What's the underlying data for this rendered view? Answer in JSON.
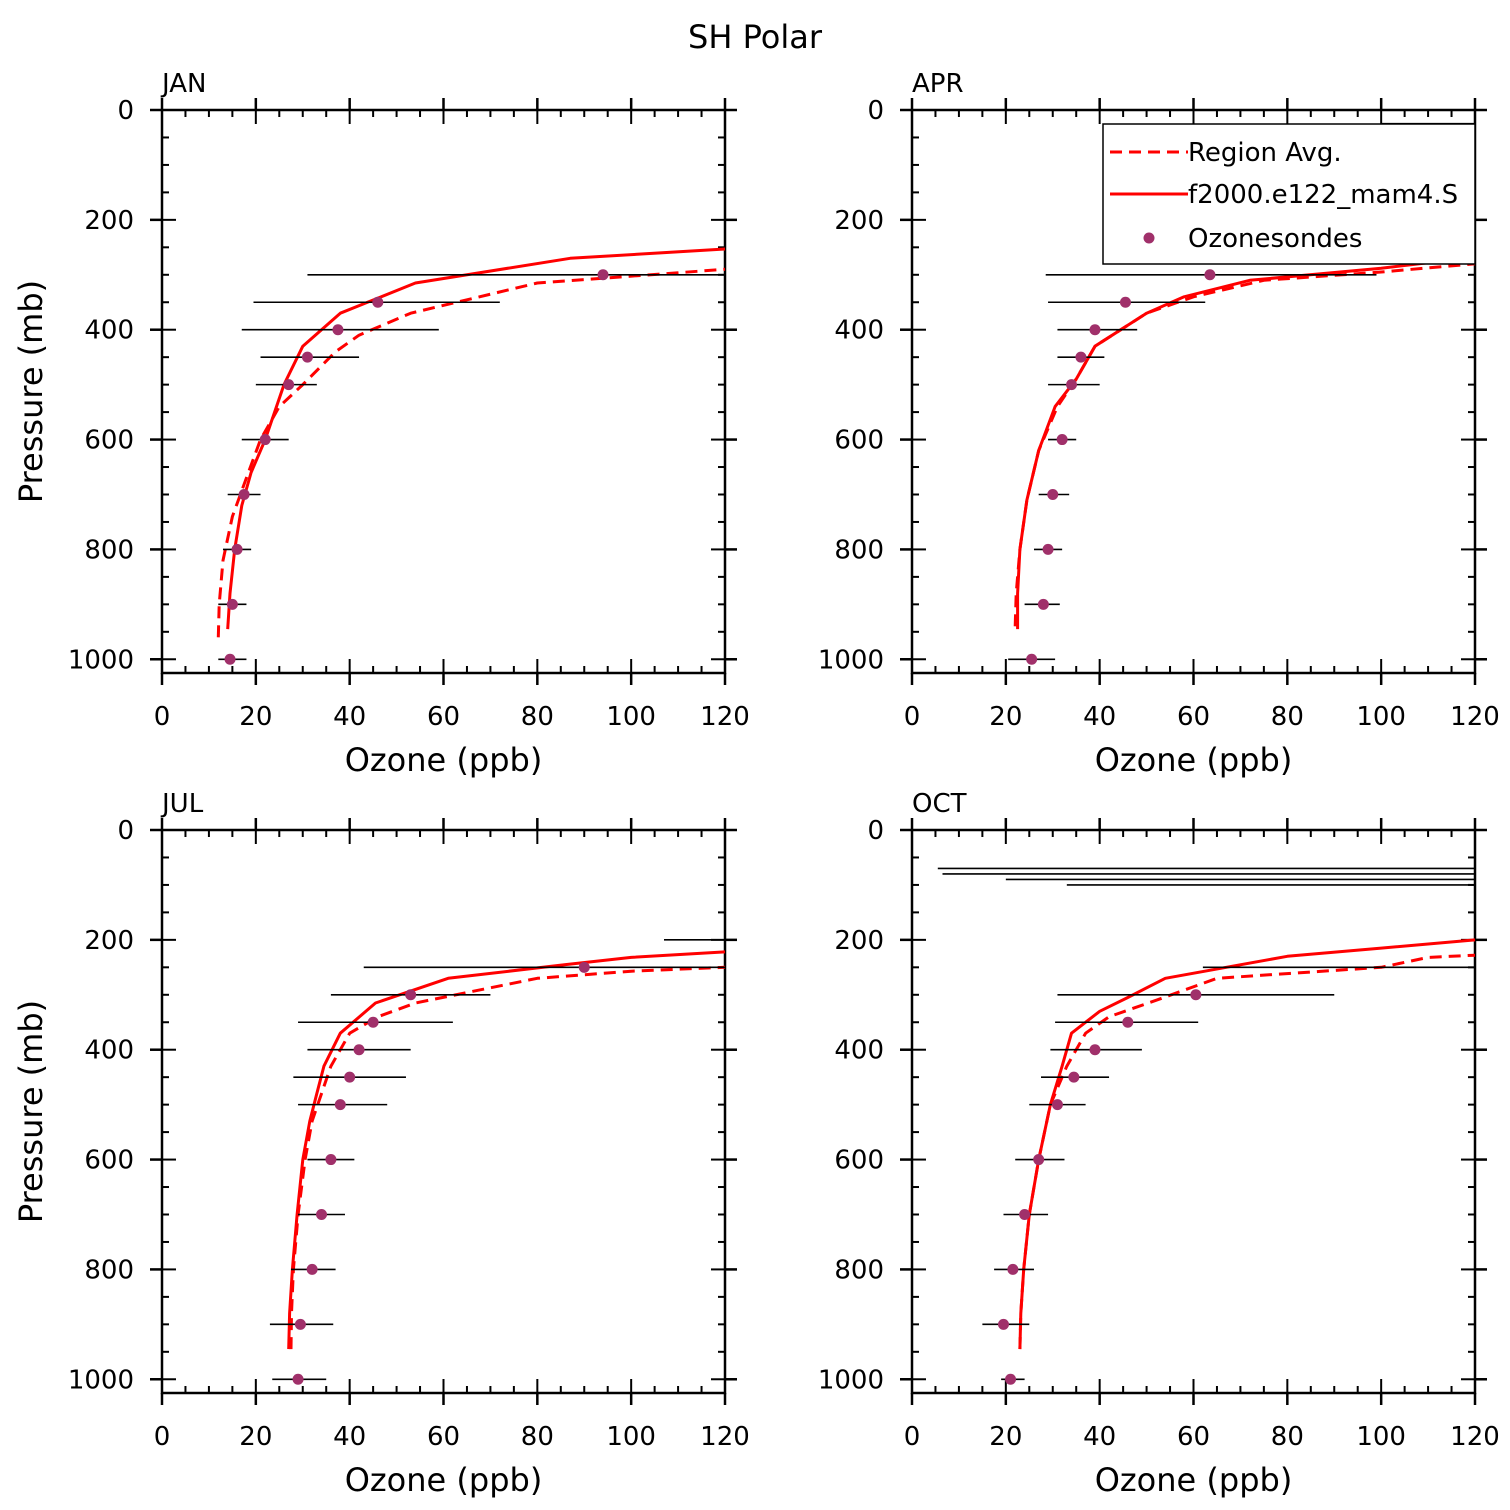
{
  "figure": {
    "title": "SH Polar",
    "xlabel": "Ozone (ppb)",
    "ylabel": "Pressure (mb)"
  },
  "legend": {
    "placement": "top-right of APR panel (clipped)",
    "entries": [
      {
        "label": "Region Avg.",
        "style": "dashed",
        "color": "#ff0000"
      },
      {
        "label": "f2000.e122_mam4.S",
        "style": "solid",
        "color": "#ff0000"
      },
      {
        "label": "Ozonesondes",
        "style": "marker",
        "color": "#a0306a"
      }
    ]
  },
  "colors": {
    "model": "#ff0000",
    "obs": "#a0306a",
    "errorbar": "#000000"
  },
  "chart_data": [
    {
      "type": "line",
      "panel": "JAN",
      "xlabel": "Ozone (ppb)",
      "ylabel": "Pressure (mb)",
      "xlim": [
        0,
        120
      ],
      "ylim": [
        1025,
        0
      ],
      "y_reversed": true,
      "xticks": [
        "0",
        "20",
        "40",
        "60",
        "80",
        "100",
        "120"
      ],
      "yticks": [
        "0",
        "200",
        "400",
        "600",
        "800",
        "1000"
      ],
      "series": [
        {
          "name": "Region Avg.",
          "style": "dashed",
          "x": [
            12,
            12.2,
            13,
            15,
            18,
            21,
            25,
            30,
            37,
            42,
            53,
            80,
            120
          ],
          "y": [
            960,
            900,
            820,
            740,
            670,
            600,
            540,
            500,
            440,
            410,
            370,
            315,
            290
          ]
        },
        {
          "name": "f2000.e122_mam4.S",
          "style": "solid",
          "x": [
            14,
            14.5,
            15.5,
            17,
            19,
            22,
            26,
            30,
            38,
            54,
            87,
            120
          ],
          "y": [
            945,
            880,
            800,
            720,
            660,
            600,
            500,
            430,
            370,
            315,
            270,
            253
          ]
        },
        {
          "name": "Ozonesondes",
          "style": "markers",
          "points": [
            {
              "x": 14.5,
              "y": 1000,
              "xerr": [
                12,
                18
              ]
            },
            {
              "x": 15,
              "y": 900,
              "xerr": [
                12,
                18
              ]
            },
            {
              "x": 16,
              "y": 800,
              "xerr": [
                13,
                19
              ]
            },
            {
              "x": 17.5,
              "y": 700,
              "xerr": [
                14,
                21
              ]
            },
            {
              "x": 22,
              "y": 600,
              "xerr": [
                17,
                27
              ]
            },
            {
              "x": 27,
              "y": 500,
              "xerr": [
                20,
                33
              ]
            },
            {
              "x": 31,
              "y": 450,
              "xerr": [
                21,
                42
              ]
            },
            {
              "x": 37.5,
              "y": 400,
              "xerr": [
                17,
                59
              ]
            },
            {
              "x": 46,
              "y": 350,
              "xerr": [
                19.5,
                72
              ]
            },
            {
              "x": 94,
              "y": 300,
              "xerr": [
                31,
                120
              ]
            }
          ]
        }
      ]
    },
    {
      "type": "line",
      "panel": "APR",
      "xlabel": "Ozone (ppb)",
      "ylabel": "",
      "xlim": [
        0,
        120
      ],
      "ylim": [
        1025,
        0
      ],
      "y_reversed": true,
      "xticks": [
        "0",
        "20",
        "40",
        "60",
        "80",
        "100",
        "120"
      ],
      "yticks": [
        "0",
        "200",
        "400",
        "600",
        "800",
        "1000"
      ],
      "series": [
        {
          "name": "Region Avg.",
          "style": "dashed",
          "x": [
            22,
            22.2,
            23,
            24.5,
            27,
            31,
            35,
            39,
            50,
            60,
            75,
            100,
            120
          ],
          "y": [
            940,
            880,
            800,
            710,
            620,
            540,
            490,
            430,
            370,
            340,
            310,
            295,
            280
          ]
        },
        {
          "name": "f2000.e122_mam4.S",
          "style": "solid",
          "x": [
            22.5,
            22.5,
            23,
            24.5,
            27,
            30.5,
            35,
            39,
            50,
            58,
            72,
            100,
            120
          ],
          "y": [
            945,
            880,
            800,
            710,
            620,
            540,
            490,
            430,
            370,
            340,
            310,
            288,
            268
          ]
        },
        {
          "name": "Ozonesondes",
          "style": "markers",
          "points": [
            {
              "x": 25.5,
              "y": 1000,
              "xerr": [
                20.5,
                30.5
              ]
            },
            {
              "x": 28,
              "y": 900,
              "xerr": [
                24,
                31.5
              ]
            },
            {
              "x": 29,
              "y": 800,
              "xerr": [
                26,
                32
              ]
            },
            {
              "x": 30,
              "y": 700,
              "xerr": [
                27,
                33.5
              ]
            },
            {
              "x": 32,
              "y": 600,
              "xerr": [
                29,
                35
              ]
            },
            {
              "x": 34,
              "y": 500,
              "xerr": [
                29,
                40
              ]
            },
            {
              "x": 36,
              "y": 450,
              "xerr": [
                31,
                41
              ]
            },
            {
              "x": 39,
              "y": 400,
              "xerr": [
                31,
                48
              ]
            },
            {
              "x": 45.5,
              "y": 350,
              "xerr": [
                29,
                62.5
              ]
            },
            {
              "x": 63.5,
              "y": 300,
              "xerr": [
                28.5,
                99
              ]
            },
            {
              "x": 120,
              "y": 250,
              "xerr": [
                51,
                120
              ]
            },
            {
              "x": 120,
              "y": 25,
              "xerr": [
                100,
                120
              ]
            }
          ]
        }
      ]
    },
    {
      "type": "line",
      "panel": "JUL",
      "xlabel": "Ozone (ppb)",
      "ylabel": "Pressure (mb)",
      "xlim": [
        0,
        120
      ],
      "ylim": [
        1025,
        0
      ],
      "y_reversed": true,
      "xticks": [
        "0",
        "20",
        "40",
        "60",
        "80",
        "100",
        "120"
      ],
      "yticks": [
        "0",
        "200",
        "400",
        "600",
        "800",
        "1000"
      ],
      "series": [
        {
          "name": "Region Avg.",
          "style": "dashed",
          "x": [
            27.5,
            27.6,
            28,
            29,
            30.5,
            32,
            34,
            36,
            40,
            46,
            54,
            80,
            100,
            120
          ],
          "y": [
            945,
            880,
            800,
            700,
            600,
            530,
            480,
            430,
            370,
            340,
            315,
            270,
            257,
            250
          ]
        },
        {
          "name": "f2000.e122_mam4.S",
          "style": "solid",
          "x": [
            27,
            27.2,
            27.8,
            28.8,
            30,
            31.5,
            33,
            34.5,
            38,
            45.5,
            61,
            86,
            100,
            120
          ],
          "y": [
            945,
            880,
            800,
            700,
            600,
            530,
            480,
            430,
            370,
            315,
            270,
            245,
            232,
            222
          ]
        },
        {
          "name": "Ozonesondes",
          "style": "markers",
          "points": [
            {
              "x": 29,
              "y": 1000,
              "xerr": [
                23.5,
                35
              ]
            },
            {
              "x": 29.5,
              "y": 900,
              "xerr": [
                23,
                36.5
              ]
            },
            {
              "x": 32,
              "y": 800,
              "xerr": [
                27.5,
                37
              ]
            },
            {
              "x": 34,
              "y": 700,
              "xerr": [
                29,
                39
              ]
            },
            {
              "x": 36,
              "y": 600,
              "xerr": [
                31,
                41
              ]
            },
            {
              "x": 38,
              "y": 500,
              "xerr": [
                29,
                48
              ]
            },
            {
              "x": 40,
              "y": 450,
              "xerr": [
                28,
                52
              ]
            },
            {
              "x": 42,
              "y": 400,
              "xerr": [
                31,
                53
              ]
            },
            {
              "x": 45,
              "y": 350,
              "xerr": [
                29,
                62
              ]
            },
            {
              "x": 53,
              "y": 300,
              "xerr": [
                36,
                70
              ]
            },
            {
              "x": 90,
              "y": 250,
              "xerr": [
                43,
                120
              ]
            },
            {
              "x": 120,
              "y": 200,
              "xerr": [
                107,
                120
              ]
            }
          ]
        }
      ]
    },
    {
      "type": "line",
      "panel": "OCT",
      "xlabel": "Ozone (ppb)",
      "ylabel": "",
      "xlim": [
        0,
        120
      ],
      "ylim": [
        1025,
        0
      ],
      "y_reversed": true,
      "xticks": [
        "0",
        "20",
        "40",
        "60",
        "80",
        "100",
        "120"
      ],
      "yticks": [
        "0",
        "200",
        "400",
        "600",
        "800",
        "1000"
      ],
      "series": [
        {
          "name": "Region Avg.",
          "style": "dashed",
          "x": [
            23,
            23.2,
            23.8,
            25,
            27,
            29.5,
            33,
            37,
            42,
            52,
            65,
            100,
            110,
            120
          ],
          "y": [
            945,
            880,
            800,
            700,
            600,
            500,
            430,
            370,
            340,
            310,
            270,
            250,
            232,
            228
          ]
        },
        {
          "name": "f2000.e122_mam4.S",
          "style": "solid",
          "x": [
            23,
            23.2,
            23.8,
            25,
            27,
            29.5,
            32,
            34,
            40,
            46,
            54,
            80,
            100,
            120
          ],
          "y": [
            945,
            880,
            800,
            700,
            600,
            500,
            430,
            370,
            330,
            305,
            270,
            230,
            215,
            200
          ]
        },
        {
          "name": "Ozonesondes",
          "style": "markers",
          "points": [
            {
              "x": 21,
              "y": 1000,
              "xerr": [
                19,
                24
              ]
            },
            {
              "x": 19.5,
              "y": 900,
              "xerr": [
                15,
                25
              ]
            },
            {
              "x": 21.5,
              "y": 800,
              "xerr": [
                17.5,
                26
              ]
            },
            {
              "x": 24,
              "y": 700,
              "xerr": [
                19.5,
                29
              ]
            },
            {
              "x": 27,
              "y": 600,
              "xerr": [
                22,
                32.5
              ]
            },
            {
              "x": 31,
              "y": 500,
              "xerr": [
                25,
                37
              ]
            },
            {
              "x": 34.5,
              "y": 450,
              "xerr": [
                27.5,
                42
              ]
            },
            {
              "x": 39,
              "y": 400,
              "xerr": [
                29.5,
                49
              ]
            },
            {
              "x": 46,
              "y": 350,
              "xerr": [
                30.5,
                61
              ]
            },
            {
              "x": 60.5,
              "y": 300,
              "xerr": [
                31,
                90
              ]
            },
            {
              "x": 120,
              "y": 250,
              "xerr": [
                62,
                120
              ]
            },
            {
              "x": 120,
              "y": 100,
              "xerr": [
                33,
                120
              ]
            },
            {
              "x": 120,
              "y": 90,
              "xerr": [
                20,
                120
              ]
            },
            {
              "x": 120,
              "y": 80,
              "xerr": [
                6.5,
                120
              ]
            },
            {
              "x": 120,
              "y": 70,
              "xerr": [
                5.5,
                120
              ]
            }
          ]
        }
      ]
    }
  ]
}
